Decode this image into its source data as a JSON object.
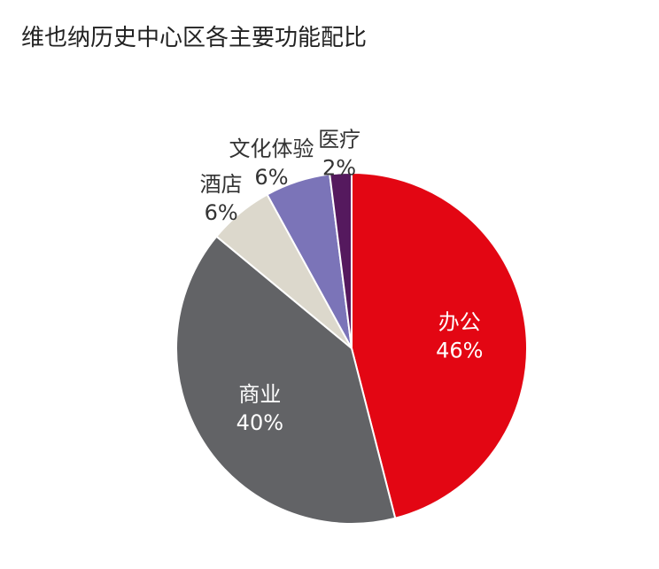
{
  "chart_data": {
    "type": "pie",
    "title": "维也纳历史中心区各主要功能配比",
    "start_angle_deg": 0,
    "direction": "clockwise",
    "slices": [
      {
        "label": "办公",
        "value": 46,
        "value_label": "46%",
        "color": "#e30613",
        "label_color": "#ffffff",
        "label_inside": true
      },
      {
        "label": "商业",
        "value": 40,
        "value_label": "40%",
        "color": "#626366",
        "label_color": "#ffffff",
        "label_inside": true
      },
      {
        "label": "酒店",
        "value": 6,
        "value_label": "6%",
        "color": "#dcd8cc",
        "label_color": "#333333",
        "label_inside": false
      },
      {
        "label": "文化体验",
        "value": 6,
        "value_label": "6%",
        "color": "#7b74b8",
        "label_color": "#333333",
        "label_inside": false
      },
      {
        "label": "医疗",
        "value": 2,
        "value_label": "2%",
        "color": "#55195e",
        "label_color": "#333333",
        "label_inside": false
      }
    ]
  }
}
